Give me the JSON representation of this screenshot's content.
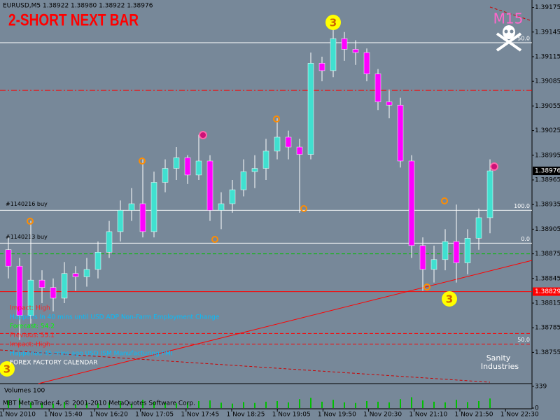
{
  "window_title": "EURUSD,M5  1.38922 1.38980 1.38922 1.38976",
  "signal_text": "2-SHORT NEXT BAR",
  "timeframe_badge": "M15",
  "signal_badges": [
    "3",
    "3",
    "3"
  ],
  "chart_data": {
    "type": "candlestick",
    "open": [
      1.3888,
      1.3886,
      1.388,
      1.38843,
      1.38834,
      1.38821,
      1.38851,
      1.38847,
      1.38856,
      1.38877,
      1.38902,
      1.38928,
      1.38936,
      1.38902,
      1.38962,
      1.38979,
      1.38992,
      1.38971,
      1.38988,
      1.38928,
      1.38936,
      1.38953,
      1.38975,
      1.38979,
      1.39,
      1.39017,
      1.39005,
      1.38996,
      1.39107,
      1.39098,
      1.39137,
      1.39124,
      1.3912,
      1.39094,
      1.3906,
      1.39056,
      1.38988,
      1.38885,
      1.38856,
      1.38868,
      1.3889,
      1.38864,
      1.38894,
      1.38919
    ],
    "high": [
      1.38895,
      1.3887,
      1.38915,
      1.38855,
      1.38845,
      1.38865,
      1.3886,
      1.3887,
      1.3889,
      1.38915,
      1.3894,
      1.38955,
      1.3899,
      1.38975,
      1.3899,
      1.39005,
      1.38995,
      1.3902,
      1.38995,
      1.3895,
      1.38965,
      1.3899,
      1.38995,
      1.39015,
      1.3904,
      1.39025,
      1.39015,
      1.3912,
      1.39115,
      1.39155,
      1.39145,
      1.39135,
      1.39125,
      1.391,
      1.39075,
      1.39065,
      1.38995,
      1.38895,
      1.38885,
      1.38905,
      1.38935,
      1.38905,
      1.3893,
      1.3899
    ],
    "low": [
      1.38845,
      1.3877,
      1.3879,
      1.38815,
      1.38805,
      1.38815,
      1.3883,
      1.38835,
      1.38845,
      1.3887,
      1.3889,
      1.38915,
      1.38895,
      1.38895,
      1.3895,
      1.38965,
      1.3896,
      1.38965,
      1.38915,
      1.38905,
      1.38925,
      1.38945,
      1.38955,
      1.38965,
      1.3899,
      1.3899,
      1.38925,
      1.3899,
      1.39085,
      1.3909,
      1.3911,
      1.39105,
      1.39085,
      1.3905,
      1.3904,
      1.3898,
      1.3887,
      1.3883,
      1.3884,
      1.38855,
      1.3884,
      1.3885,
      1.3888,
      1.389
    ],
    "close": [
      1.3886,
      1.388,
      1.38843,
      1.38834,
      1.38821,
      1.38851,
      1.38847,
      1.38856,
      1.38877,
      1.38902,
      1.38928,
      1.38936,
      1.38902,
      1.38962,
      1.38979,
      1.38992,
      1.38971,
      1.38988,
      1.38928,
      1.38936,
      1.38953,
      1.38975,
      1.38979,
      1.39,
      1.39017,
      1.39005,
      1.38996,
      1.39107,
      1.39098,
      1.39137,
      1.39124,
      1.3912,
      1.39094,
      1.3906,
      1.39056,
      1.38988,
      1.38885,
      1.38856,
      1.38868,
      1.3889,
      1.38864,
      1.38894,
      1.38919,
      1.38976
    ],
    "bull_color": "#40e0d0",
    "bear_color": "#ff00ff",
    "wick_color": "#ffffff",
    "ylim": [
      1.38717,
      1.39184
    ],
    "yticks": [
      1.39175,
      1.39145,
      1.39115,
      1.39085,
      1.39055,
      1.39025,
      1.38995,
      1.38965,
      1.38935,
      1.38905,
      1.38875,
      1.38845,
      1.38815,
      1.38785,
      1.38755
    ],
    "bid_price": 1.38976,
    "alert_price": 1.38829,
    "levels": [
      {
        "value": 1.39132,
        "label": "50.0",
        "color": "#ffffff",
        "style": "solid"
      },
      {
        "value": 1.39074,
        "color": "#ff0000",
        "style": "dashdot"
      },
      {
        "value": 1.38928,
        "label": "100.0",
        "order": "#1140216 buy",
        "color": "#ffffff",
        "style": "solid"
      },
      {
        "value": 1.38888,
        "label": "0.0",
        "order": "#1140213 buy",
        "color": "#ffffff",
        "style": "solid"
      },
      {
        "value": 1.38875,
        "color": "#00c000",
        "style": "dashed"
      },
      {
        "value": 1.38829,
        "color": "#ff0000",
        "style": "solid"
      },
      {
        "value": 1.38778,
        "color": "#ff0000",
        "style": "dashed"
      },
      {
        "value": 1.38765,
        "label": "50.0",
        "color": "#ff0000",
        "style": "dashed"
      }
    ],
    "volumes": {
      "label": "Volumes 100",
      "values": [
        120,
        150,
        90,
        80,
        70,
        95,
        60,
        85,
        75,
        90,
        110,
        70,
        130,
        100,
        80,
        75,
        90,
        110,
        120,
        85,
        70,
        95,
        80,
        100,
        110,
        90,
        140,
        160,
        100,
        130,
        90,
        80,
        110,
        100,
        90,
        140,
        170,
        120,
        100,
        90,
        130,
        95,
        110,
        150
      ],
      "ylim": [
        0,
        339
      ],
      "yticks": [
        339,
        0
      ]
    },
    "time_axis": [
      "1 Nov 2010",
      "1 Nov 15:40",
      "1 Nov 16:20",
      "1 Nov 17:05",
      "1 Nov 17:45",
      "1 Nov 18:25",
      "1 Nov 19:05",
      "1 Nov 19:50",
      "1 Nov 20:30",
      "1 Nov 21:10",
      "1 Nov 21:50",
      "1 Nov 22:30"
    ]
  },
  "news": [
    {
      "text": "Impact: High",
      "color": "#ff2020"
    },
    {
      "text": "Happens In 40 mins until USD  ADP Non-Farm Employment Change",
      "color": "#00bfff"
    },
    {
      "text": "Forecast: 54.2",
      "color": "#00ff00"
    },
    {
      "text": "Previous: 55.1",
      "color": "#ff2020"
    },
    {
      "text": "Impact: High",
      "color": "#ff2020"
    },
    {
      "text": "Happened 45 mins ago USD  ISM Manufacturing PMI",
      "color": "#00bfff"
    },
    {
      "text": "FOREX FACTORY CALENDAR",
      "color": "#ffffff"
    }
  ],
  "logo": [
    "Sanity",
    "Industries"
  ],
  "footer": "MBT MetaTrader 4, © 2001-2010 MetaQuotes Software Corp."
}
